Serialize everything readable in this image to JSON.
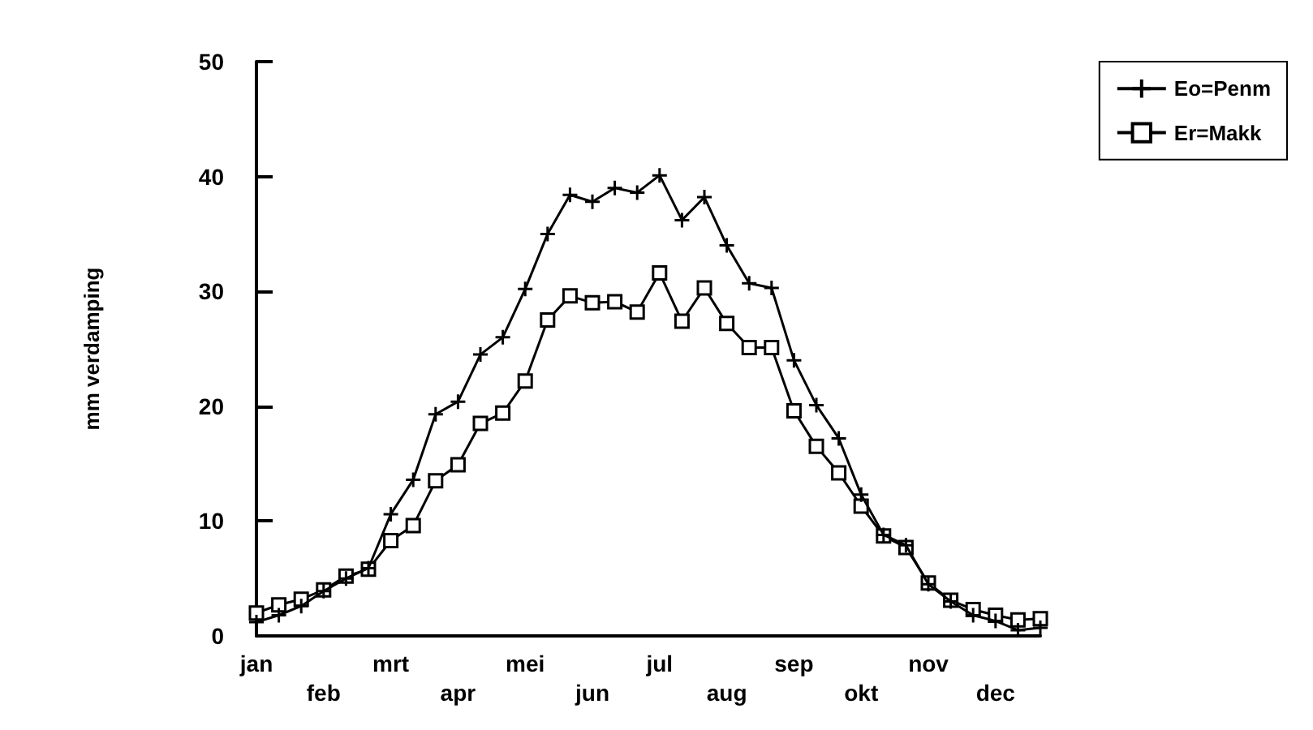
{
  "chart_data": {
    "type": "line",
    "ylabel": "mm verdamping",
    "categories": [
      "jan",
      null,
      null,
      "feb",
      null,
      null,
      "mrt",
      null,
      null,
      "apr",
      null,
      null,
      "mei",
      null,
      null,
      "jun",
      null,
      null,
      "jul",
      null,
      null,
      "aug",
      null,
      null,
      "sep",
      null,
      null,
      "okt",
      null,
      null,
      "nov",
      null,
      null,
      "dec",
      null,
      null
    ],
    "series": [
      {
        "name": "Eo=Penm",
        "color": "#000000",
        "marker": "cross",
        "values": [
          1.2,
          1.8,
          2.6,
          3.9,
          5.0,
          5.9,
          10.6,
          13.6,
          19.3,
          20.4,
          24.5,
          26,
          30.2,
          35,
          38.4,
          37.8,
          39,
          38.6,
          40.1,
          36.2,
          38.2,
          34,
          30.7,
          30.3,
          24,
          20.1,
          17.2,
          12.3,
          8.8,
          7.9,
          4.5,
          3,
          1.8,
          1.3,
          0.5,
          0.7
        ]
      },
      {
        "name": "Er=Makk",
        "color": "#000000",
        "marker": "square",
        "values": [
          2,
          2.7,
          3.2,
          4,
          5.2,
          5.8,
          8.3,
          9.6,
          13.5,
          14.9,
          18.5,
          19.4,
          22.2,
          27.5,
          29.6,
          29,
          29.1,
          28.2,
          31.6,
          27.4,
          30.3,
          27.2,
          25.1,
          25.1,
          19.6,
          16.5,
          14.2,
          11.3,
          8.7,
          7.7,
          4.6,
          3.1,
          2.3,
          1.8,
          1.4,
          1.5
        ]
      }
    ],
    "ylim": [
      0,
      50
    ],
    "yticks": [
      0,
      10,
      20,
      30,
      40,
      50
    ],
    "grid": false,
    "legend": "top right"
  }
}
